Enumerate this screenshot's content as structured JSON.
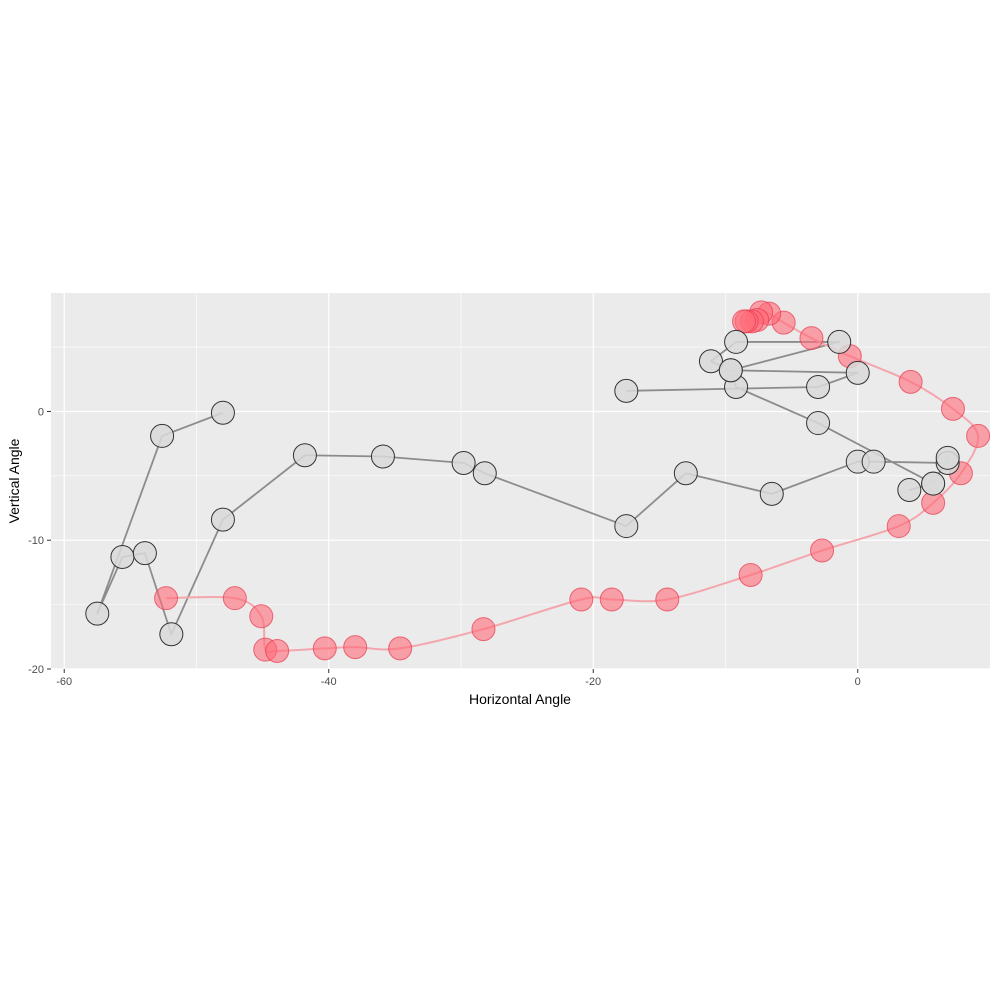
{
  "chart_data": {
    "type": "scatter",
    "title": "",
    "xlabel": "Horizontal Angle",
    "ylabel": "Vertical Angle",
    "xlim": [
      -61,
      10
    ],
    "ylim": [
      -20,
      9.2
    ],
    "x_ticks": [
      -60,
      -40,
      -20,
      0
    ],
    "y_ticks": [
      -20,
      -10,
      0
    ],
    "grid": true,
    "legend": "none",
    "colors": {
      "panel": "#ebebeb",
      "grid": "#ffffff",
      "gray_point": "#d9d9d9",
      "gray_stroke": "#333333",
      "gray_line": "#8c8c8c",
      "red_point": "#ff6b78",
      "red_stroke": "#e8384f",
      "red_line": "#f4a6ad"
    },
    "series": [
      {
        "style": "gray-path",
        "points": [
          [
            -48.0,
            -0.1
          ],
          [
            -52.6,
            -1.9
          ],
          [
            -57.5,
            -15.7
          ],
          [
            -55.6,
            -11.3
          ],
          [
            -53.9,
            -11.0
          ],
          [
            -51.9,
            -17.3
          ],
          [
            -48.0,
            -8.4
          ],
          [
            -41.8,
            -3.4
          ],
          [
            -35.9,
            -3.5
          ],
          [
            -29.8,
            -4.0
          ],
          [
            -28.2,
            -4.8
          ],
          [
            -17.5,
            -8.9
          ],
          [
            -13.0,
            -4.8
          ],
          [
            -6.5,
            -6.4
          ],
          [
            0.0,
            -3.9
          ],
          [
            1.2,
            -3.9
          ],
          [
            6.8,
            -4.0
          ],
          [
            6.8,
            -3.6
          ],
          [
            5.7,
            -5.6
          ],
          [
            3.9,
            -6.1
          ],
          [
            5.7,
            -5.6
          ],
          [
            -3.0,
            -0.9
          ],
          [
            -9.2,
            1.9
          ],
          [
            -9.6,
            3.2
          ],
          [
            -11.1,
            3.9
          ],
          [
            -9.2,
            5.4
          ],
          [
            -1.4,
            5.4
          ],
          [
            -9.6,
            3.2
          ],
          [
            0.0,
            3.0
          ],
          [
            -3.0,
            1.9
          ],
          [
            -17.5,
            1.6
          ]
        ]
      },
      {
        "style": "red-path",
        "points": [
          [
            -52.3,
            -14.5
          ],
          [
            -47.1,
            -14.5
          ],
          [
            -45.1,
            -15.9
          ],
          [
            -44.8,
            -18.5
          ],
          [
            -43.9,
            -18.6
          ],
          [
            -40.3,
            -18.4
          ],
          [
            -38.0,
            -18.3
          ],
          [
            -34.6,
            -18.4
          ],
          [
            -28.3,
            -16.9
          ],
          [
            -20.9,
            -14.6
          ],
          [
            -18.6,
            -14.6
          ],
          [
            -14.4,
            -14.6
          ],
          [
            -8.1,
            -12.7
          ],
          [
            -2.7,
            -10.8
          ],
          [
            3.1,
            -8.9
          ],
          [
            5.7,
            -7.1
          ],
          [
            7.8,
            -4.8
          ],
          [
            9.1,
            -1.9
          ],
          [
            7.2,
            0.2
          ],
          [
            4.0,
            2.3
          ],
          [
            -0.6,
            4.3
          ],
          [
            -3.5,
            5.7
          ],
          [
            -5.6,
            6.9
          ],
          [
            -6.7,
            7.6
          ],
          [
            -7.3,
            7.7
          ],
          [
            -7.6,
            7.1
          ],
          [
            -8.0,
            7.0
          ],
          [
            -8.4,
            7.0
          ],
          [
            -8.6,
            7.0
          ]
        ]
      }
    ]
  }
}
